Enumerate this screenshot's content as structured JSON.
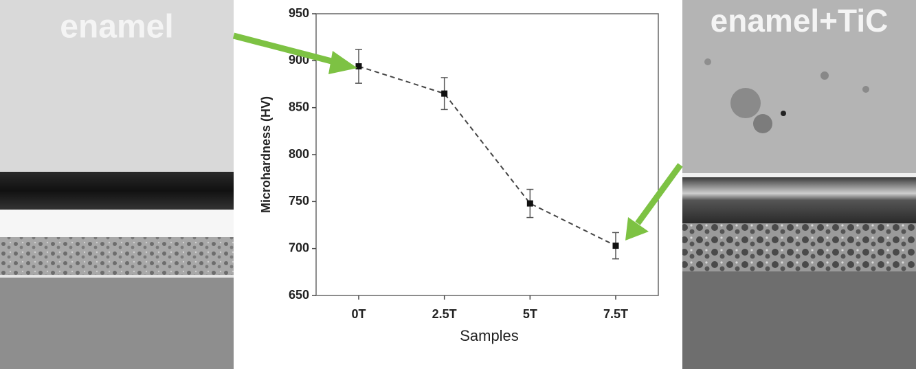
{
  "chart_data": {
    "type": "line",
    "left_label": "enamel",
    "right_label": "enamel+TiC",
    "xlabel": "Samples",
    "ylabel": "Microhardness (HV)",
    "categories": [
      "0T",
      "2.5T",
      "5T",
      "7.5T"
    ],
    "values": [
      894,
      865,
      748,
      703
    ],
    "errors": [
      18,
      17,
      15,
      14
    ],
    "color": "#111111",
    "ylim": [
      650,
      950
    ],
    "yticks": [
      650,
      700,
      750,
      800,
      850,
      900,
      950
    ]
  }
}
